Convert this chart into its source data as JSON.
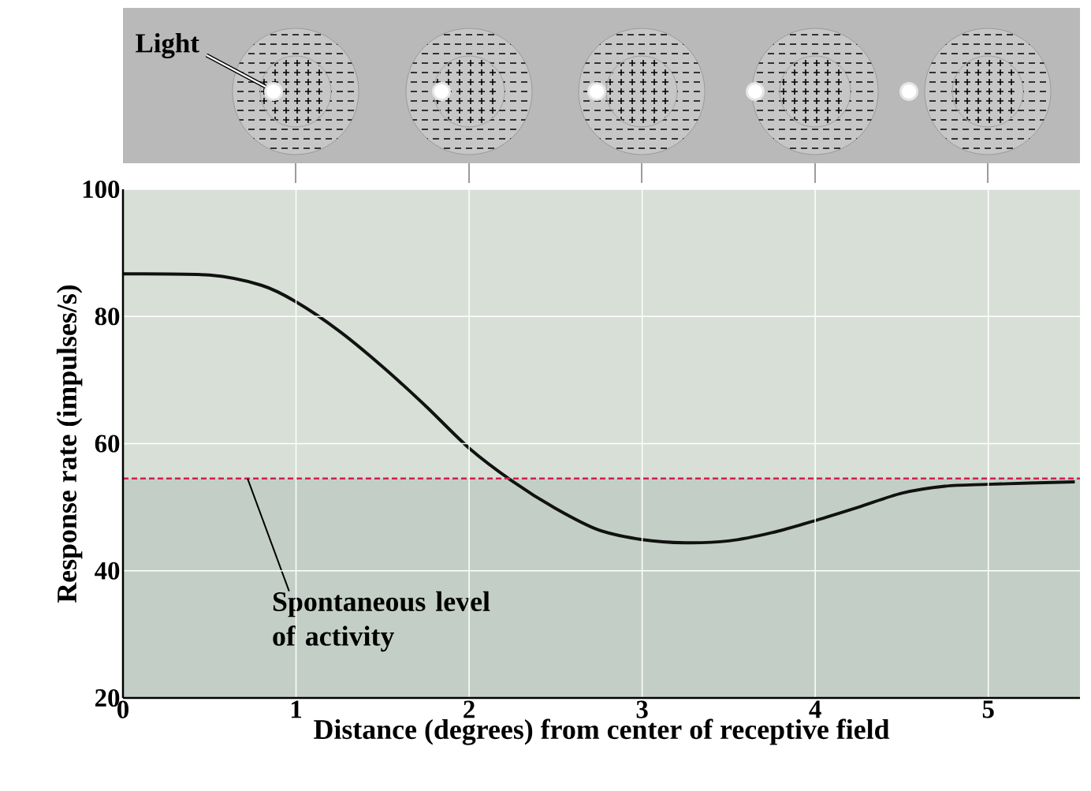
{
  "chart_data": {
    "type": "line",
    "xlabel": "Distance (degrees) from center of receptive field",
    "ylabel": "Response rate (impulses/s)",
    "x": [
      0,
      0.5,
      0.8,
      1,
      1.25,
      1.5,
      1.75,
      2,
      2.25,
      2.5,
      2.75,
      3,
      3.25,
      3.5,
      3.75,
      4,
      4.25,
      4.5,
      4.75,
      5,
      5.5
    ],
    "series": [
      {
        "color": "#111111",
        "values": [
          86.7,
          86.5,
          84.9,
          82.3,
          77.7,
          72.1,
          65.9,
          59.3,
          54.1,
          49.8,
          46.4,
          44.9,
          44.4,
          44.7,
          46.0,
          47.9,
          50.0,
          52.2,
          53.3,
          53.6,
          54.0
        ]
      }
    ],
    "xlim": [
      0,
      5.53
    ],
    "ylim": [
      20,
      100
    ],
    "xticks": [
      0,
      1,
      2,
      3,
      4,
      5
    ],
    "yticks": [
      20,
      40,
      60,
      80,
      100
    ],
    "grid": true,
    "line_style": "solid",
    "ref_lines": [
      {
        "axis": "y",
        "value": 54.5,
        "label": "Spontaneous level of activity",
        "color": "#d0204e",
        "line_style": "dashed"
      }
    ],
    "bands": [
      {
        "axis": "y",
        "from": 20,
        "to": 54.5,
        "color": "#c3cfc6"
      }
    ],
    "annotations": [
      "Light"
    ]
  }
}
